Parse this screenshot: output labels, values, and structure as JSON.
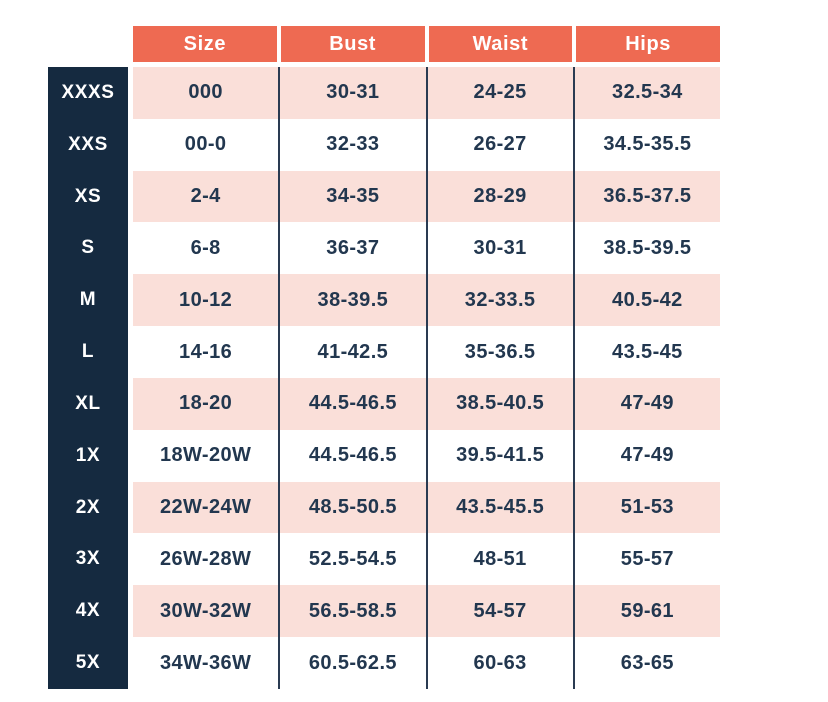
{
  "chart_data": {
    "type": "table",
    "columns": [
      "Size",
      "Bust",
      "Waist",
      "Hips"
    ],
    "rows": [
      {
        "label": "XXXS",
        "size": "000",
        "bust": "30-31",
        "waist": "24-25",
        "hips": "32.5-34"
      },
      {
        "label": "XXS",
        "size": "00-0",
        "bust": "32-33",
        "waist": "26-27",
        "hips": "34.5-35.5"
      },
      {
        "label": "XS",
        "size": "2-4",
        "bust": "34-35",
        "waist": "28-29",
        "hips": "36.5-37.5"
      },
      {
        "label": "S",
        "size": "6-8",
        "bust": "36-37",
        "waist": "30-31",
        "hips": "38.5-39.5"
      },
      {
        "label": "M",
        "size": "10-12",
        "bust": "38-39.5",
        "waist": "32-33.5",
        "hips": "40.5-42"
      },
      {
        "label": "L",
        "size": "14-16",
        "bust": "41-42.5",
        "waist": "35-36.5",
        "hips": "43.5-45"
      },
      {
        "label": "XL",
        "size": "18-20",
        "bust": "44.5-46.5",
        "waist": "38.5-40.5",
        "hips": "47-49"
      },
      {
        "label": "1X",
        "size": "18W-20W",
        "bust": "44.5-46.5",
        "waist": "39.5-41.5",
        "hips": "47-49"
      },
      {
        "label": "2X",
        "size": "22W-24W",
        "bust": "48.5-50.5",
        "waist": "43.5-45.5",
        "hips": "51-53"
      },
      {
        "label": "3X",
        "size": "26W-28W",
        "bust": "52.5-54.5",
        "waist": "48-51",
        "hips": "55-57"
      },
      {
        "label": "4X",
        "size": "30W-32W",
        "bust": "56.5-58.5",
        "waist": "54-57",
        "hips": "59-61"
      },
      {
        "label": "5X",
        "size": "34W-36W",
        "bust": "60.5-62.5",
        "waist": "60-63",
        "hips": "63-65"
      }
    ]
  },
  "colors": {
    "header_bg": "#EE6A52",
    "row_alt_bg": "#FADFD9",
    "label_col_bg": "#152A40",
    "text": "#22374F",
    "divider": "#2A3B52"
  }
}
